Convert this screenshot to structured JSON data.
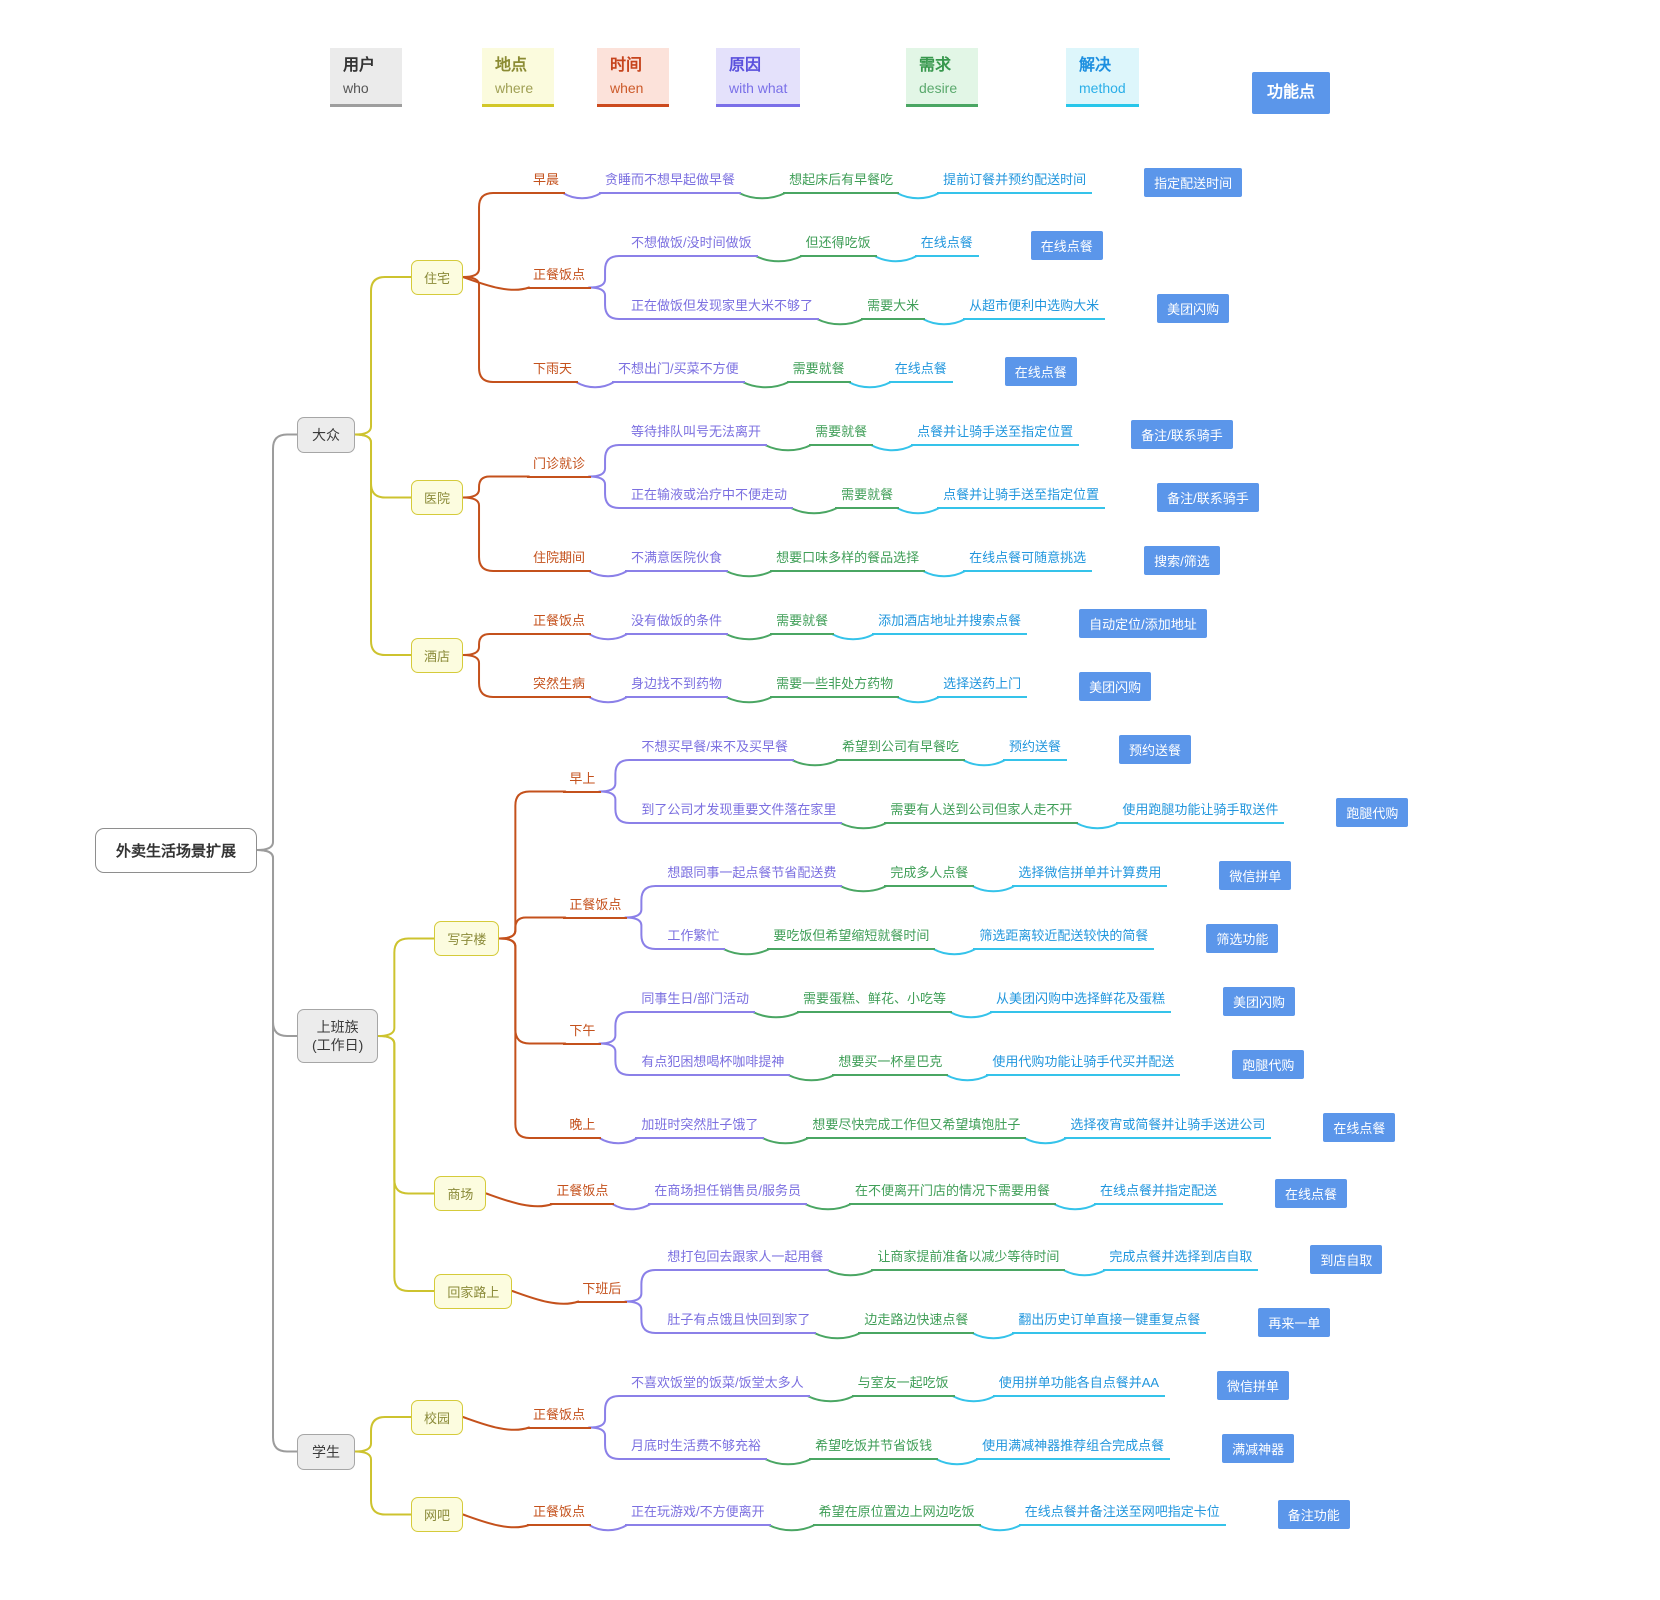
{
  "legend": [
    {
      "zh": "用户",
      "en": "who"
    },
    {
      "zh": "地点",
      "en": "where"
    },
    {
      "zh": "时间",
      "en": "when"
    },
    {
      "zh": "原因",
      "en": "with what"
    },
    {
      "zh": "需求",
      "en": "desire"
    },
    {
      "zh": "解决",
      "en": "method"
    },
    {
      "zh": "功能点",
      "en": ""
    }
  ],
  "levels": [
    "root",
    "user",
    "place",
    "time",
    "reason",
    "desire",
    "method",
    "feature"
  ],
  "colors": {
    "user_line": "#9c9c9c",
    "place_line": "#cdc32f",
    "time_line": "#c4511c",
    "reason_line": "#8b80e8",
    "desire_line": "#4aa663",
    "method_line": "#35c3ea",
    "feature_bg": "#5b96ea"
  },
  "root": {
    "label": "外卖生活场景扩展",
    "children": [
      {
        "label": "大众",
        "children": [
          {
            "label": "住宅",
            "children": [
              {
                "label": "早晨",
                "children": [
                  {
                    "label": "贪睡而不想早起做早餐",
                    "children": [
                      {
                        "label": "想起床后有早餐吃",
                        "children": [
                          {
                            "label": "提前订餐并预约配送时间",
                            "children": [
                              {
                                "label": "指定配送时间"
                              }
                            ]
                          }
                        ]
                      }
                    ]
                  }
                ]
              },
              {
                "label": "正餐饭点",
                "children": [
                  {
                    "label": "不想做饭/没时间做饭",
                    "children": [
                      {
                        "label": "但还得吃饭",
                        "children": [
                          {
                            "label": "在线点餐",
                            "children": [
                              {
                                "label": "在线点餐"
                              }
                            ]
                          }
                        ]
                      }
                    ]
                  },
                  {
                    "label": "正在做饭但发现家里大米不够了",
                    "children": [
                      {
                        "label": "需要大米",
                        "children": [
                          {
                            "label": "从超市便利中选购大米",
                            "children": [
                              {
                                "label": "美团闪购"
                              }
                            ]
                          }
                        ]
                      }
                    ]
                  }
                ]
              },
              {
                "label": "下雨天",
                "children": [
                  {
                    "label": "不想出门/买菜不方便",
                    "children": [
                      {
                        "label": "需要就餐",
                        "children": [
                          {
                            "label": "在线点餐",
                            "children": [
                              {
                                "label": "在线点餐"
                              }
                            ]
                          }
                        ]
                      }
                    ]
                  }
                ]
              }
            ]
          },
          {
            "label": "医院",
            "children": [
              {
                "label": "门诊就诊",
                "children": [
                  {
                    "label": "等待排队叫号无法离开",
                    "children": [
                      {
                        "label": "需要就餐",
                        "children": [
                          {
                            "label": "点餐并让骑手送至指定位置",
                            "children": [
                              {
                                "label": "备注/联系骑手"
                              }
                            ]
                          }
                        ]
                      }
                    ]
                  },
                  {
                    "label": "正在输液或治疗中不便走动",
                    "children": [
                      {
                        "label": "需要就餐",
                        "children": [
                          {
                            "label": "点餐并让骑手送至指定位置",
                            "children": [
                              {
                                "label": "备注/联系骑手"
                              }
                            ]
                          }
                        ]
                      }
                    ]
                  }
                ]
              },
              {
                "label": "住院期间",
                "children": [
                  {
                    "label": "不满意医院伙食",
                    "children": [
                      {
                        "label": "想要口味多样的餐品选择",
                        "children": [
                          {
                            "label": "在线点餐可随意挑选",
                            "children": [
                              {
                                "label": "搜索/筛选"
                              }
                            ]
                          }
                        ]
                      }
                    ]
                  }
                ]
              }
            ]
          },
          {
            "label": "酒店",
            "children": [
              {
                "label": "正餐饭点",
                "children": [
                  {
                    "label": "没有做饭的条件",
                    "children": [
                      {
                        "label": "需要就餐",
                        "children": [
                          {
                            "label": "添加酒店地址并搜索点餐",
                            "children": [
                              {
                                "label": "自动定位/添加地址"
                              }
                            ]
                          }
                        ]
                      }
                    ]
                  }
                ]
              },
              {
                "label": "突然生病",
                "children": [
                  {
                    "label": "身边找不到药物",
                    "children": [
                      {
                        "label": "需要一些非处方药物",
                        "children": [
                          {
                            "label": "选择送药上门",
                            "children": [
                              {
                                "label": "美团闪购"
                              }
                            ]
                          }
                        ]
                      }
                    ]
                  }
                ]
              }
            ]
          }
        ]
      },
      {
        "label": "上班族\n(工作日)",
        "children": [
          {
            "label": "写字楼",
            "children": [
              {
                "label": "早上",
                "children": [
                  {
                    "label": "不想买早餐/来不及买早餐",
                    "children": [
                      {
                        "label": "希望到公司有早餐吃",
                        "children": [
                          {
                            "label": "预约送餐",
                            "children": [
                              {
                                "label": "预约送餐"
                              }
                            ]
                          }
                        ]
                      }
                    ]
                  },
                  {
                    "label": "到了公司才发现重要文件落在家里",
                    "children": [
                      {
                        "label": "需要有人送到公司但家人走不开",
                        "children": [
                          {
                            "label": "使用跑腿功能让骑手取送件",
                            "children": [
                              {
                                "label": "跑腿代购"
                              }
                            ]
                          }
                        ]
                      }
                    ]
                  }
                ]
              },
              {
                "label": "正餐饭点",
                "children": [
                  {
                    "label": "想跟同事一起点餐节省配送费",
                    "children": [
                      {
                        "label": "完成多人点餐",
                        "children": [
                          {
                            "label": "选择微信拼单并计算费用",
                            "children": [
                              {
                                "label": "微信拼单"
                              }
                            ]
                          }
                        ]
                      }
                    ]
                  },
                  {
                    "label": "工作繁忙",
                    "children": [
                      {
                        "label": "要吃饭但希望缩短就餐时间",
                        "children": [
                          {
                            "label": "筛选距离较近配送较快的简餐",
                            "children": [
                              {
                                "label": "筛选功能"
                              }
                            ]
                          }
                        ]
                      }
                    ]
                  }
                ]
              },
              {
                "label": "下午",
                "children": [
                  {
                    "label": "同事生日/部门活动",
                    "children": [
                      {
                        "label": "需要蛋糕、鲜花、小吃等",
                        "children": [
                          {
                            "label": "从美团闪购中选择鲜花及蛋糕",
                            "children": [
                              {
                                "label": "美团闪购"
                              }
                            ]
                          }
                        ]
                      }
                    ]
                  },
                  {
                    "label": "有点犯困想喝杯咖啡提神",
                    "children": [
                      {
                        "label": "想要买一杯星巴克",
                        "children": [
                          {
                            "label": "使用代购功能让骑手代买并配送",
                            "children": [
                              {
                                "label": "跑腿代购"
                              }
                            ]
                          }
                        ]
                      }
                    ]
                  }
                ]
              },
              {
                "label": "晚上",
                "children": [
                  {
                    "label": "加班时突然肚子饿了",
                    "children": [
                      {
                        "label": "想要尽快完成工作但又希望填饱肚子",
                        "children": [
                          {
                            "label": "选择夜宵或简餐并让骑手送进公司",
                            "children": [
                              {
                                "label": "在线点餐"
                              }
                            ]
                          }
                        ]
                      }
                    ]
                  }
                ]
              }
            ]
          },
          {
            "label": "商场",
            "children": [
              {
                "label": "正餐饭点",
                "children": [
                  {
                    "label": "在商场担任销售员/服务员",
                    "children": [
                      {
                        "label": "在不便离开门店的情况下需要用餐",
                        "children": [
                          {
                            "label": "在线点餐并指定配送",
                            "children": [
                              {
                                "label": "在线点餐"
                              }
                            ]
                          }
                        ]
                      }
                    ]
                  }
                ]
              }
            ]
          },
          {
            "label": "回家路上",
            "children": [
              {
                "label": "下班后",
                "children": [
                  {
                    "label": "想打包回去跟家人一起用餐",
                    "children": [
                      {
                        "label": "让商家提前准备以减少等待时间",
                        "children": [
                          {
                            "label": "完成点餐并选择到店自取",
                            "children": [
                              {
                                "label": "到店自取"
                              }
                            ]
                          }
                        ]
                      }
                    ]
                  },
                  {
                    "label": "肚子有点饿且快回到家了",
                    "children": [
                      {
                        "label": "边走路边快速点餐",
                        "children": [
                          {
                            "label": "翻出历史订单直接一键重复点餐",
                            "children": [
                              {
                                "label": "再来一单"
                              }
                            ]
                          }
                        ]
                      }
                    ]
                  }
                ]
              }
            ]
          }
        ]
      },
      {
        "label": "学生",
        "children": [
          {
            "label": "校园",
            "children": [
              {
                "label": "正餐饭点",
                "children": [
                  {
                    "label": "不喜欢饭堂的饭菜/饭堂太多人",
                    "children": [
                      {
                        "label": "与室友一起吃饭",
                        "children": [
                          {
                            "label": "使用拼单功能各自点餐并AA",
                            "children": [
                              {
                                "label": "微信拼单"
                              }
                            ]
                          }
                        ]
                      }
                    ]
                  },
                  {
                    "label": "月底时生活费不够充裕",
                    "children": [
                      {
                        "label": "希望吃饭并节省饭钱",
                        "children": [
                          {
                            "label": "使用满减神器推荐组合完成点餐",
                            "children": [
                              {
                                "label": "满减神器"
                              }
                            ]
                          }
                        ]
                      }
                    ]
                  }
                ]
              }
            ]
          },
          {
            "label": "网吧",
            "children": [
              {
                "label": "正餐饭点",
                "children": [
                  {
                    "label": "正在玩游戏/不方便离开",
                    "children": [
                      {
                        "label": "希望在原位置边上网边吃饭",
                        "children": [
                          {
                            "label": "在线点餐并备注送至网吧指定卡位",
                            "children": [
                              {
                                "label": "备注功能"
                              }
                            ]
                          }
                        ]
                      }
                    ]
                  }
                ]
              }
            ]
          }
        ]
      }
    ]
  }
}
